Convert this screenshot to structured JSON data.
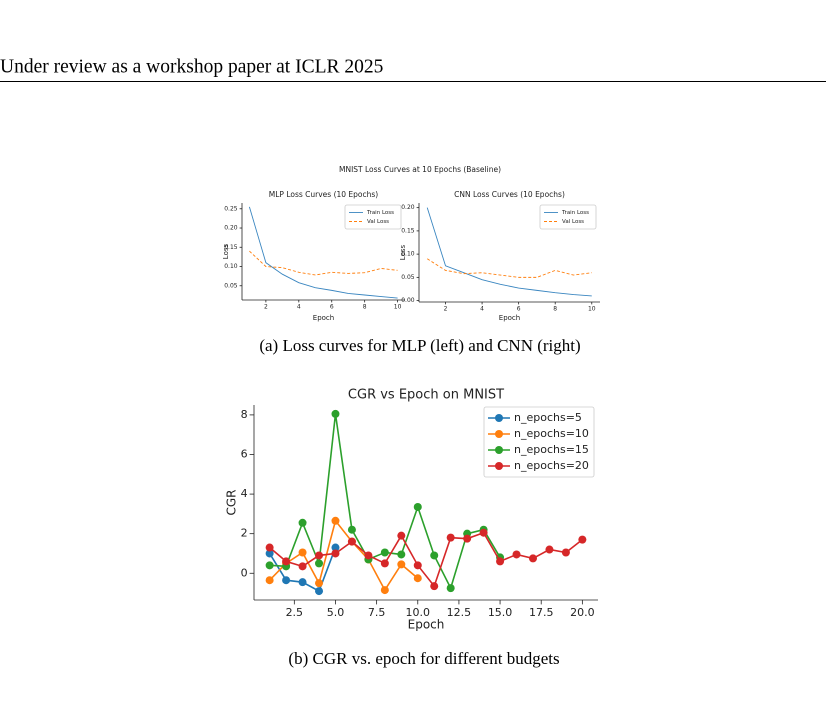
{
  "header": {
    "title": "Under review as a workshop paper at ICLR 2025"
  },
  "figure_title": "MNIST Loss Curves at 10 Epochs (Baseline)",
  "captions": [
    "(a) Loss curves for MLP (left) and CNN (right)",
    "(b) CGR vs. epoch for different budgets"
  ],
  "chart_data": [
    {
      "type": "line",
      "title": "MLP Loss Curves (10 Epochs)",
      "x_label": "Epoch",
      "y_label": "Loss",
      "x": [
        1,
        2,
        3,
        4,
        5,
        6,
        7,
        8,
        9,
        10
      ],
      "xlim": [
        0.55,
        10.45
      ],
      "xticks": [
        2,
        4,
        6,
        8,
        10
      ],
      "ylim": [
        0.013,
        0.265
      ],
      "yticks": [
        0.05,
        {
          "value": 0.1,
          "label": "0.10"
        },
        0.15,
        {
          "value": 0.2,
          "label": "0.20"
        },
        0.25
      ],
      "legend": "upper right",
      "series": [
        {
          "name": "Train Loss",
          "color": "#3a86c0",
          "linestyle": "solid",
          "values": [
            0.255,
            0.11,
            0.08,
            0.058,
            0.045,
            0.038,
            0.03,
            0.026,
            0.022,
            0.018
          ]
        },
        {
          "name": "Val Loss",
          "color": "#ff7f0e",
          "linestyle": "dashed",
          "values": [
            0.14,
            0.1,
            0.097,
            0.085,
            0.078,
            0.085,
            0.082,
            0.084,
            0.095,
            0.09
          ]
        }
      ]
    },
    {
      "type": "line",
      "title": "CNN Loss Curves (10 Epochs)",
      "x_label": "Epoch",
      "y_label": "Loss",
      "x": [
        1,
        2,
        3,
        4,
        5,
        6,
        7,
        8,
        9,
        10
      ],
      "xlim": [
        0.55,
        10.45
      ],
      "xticks": [
        2,
        4,
        6,
        8,
        10
      ],
      "ylim": [
        -0.003,
        0.21
      ],
      "yticks": [
        {
          "value": 0,
          "label": "0.00"
        },
        0.05,
        {
          "value": 0.1,
          "label": "0.10"
        },
        0.15,
        {
          "value": 0.2,
          "label": "0.20"
        }
      ],
      "legend": "upper right",
      "series": [
        {
          "name": "Train Loss",
          "color": "#3a86c0",
          "linestyle": "solid",
          "values": [
            0.2,
            0.075,
            0.06,
            0.045,
            0.035,
            0.027,
            0.022,
            0.017,
            0.013,
            0.01
          ]
        },
        {
          "name": "Val Loss",
          "color": "#ff7f0e",
          "linestyle": "dashed",
          "values": [
            0.09,
            0.065,
            0.058,
            0.06,
            0.055,
            0.05,
            0.05,
            0.065,
            0.055,
            0.06
          ]
        }
      ]
    },
    {
      "type": "line",
      "title": "CGR vs Epoch on MNIST",
      "x_label": "Epoch",
      "y_label": "CGR",
      "xlim": [
        0.05,
        20.95
      ],
      "xticks": [
        2.5,
        {
          "value": 5,
          "label": "5.0"
        },
        7.5,
        {
          "value": 10,
          "label": "10.0"
        },
        12.5,
        {
          "value": 15,
          "label": "15.0"
        },
        17.5,
        {
          "value": 20,
          "label": "20.0"
        }
      ],
      "ylim": [
        -1.35,
        8.5
      ],
      "yticks": [
        0,
        2,
        4,
        6,
        8
      ],
      "legend": "upper right",
      "marker": "circle",
      "series": [
        {
          "name": "n_epochs=5",
          "color": "#1f77b4",
          "linestyle": "solid",
          "x": [
            1,
            2,
            3,
            4,
            5
          ],
          "values": [
            1.0,
            -0.35,
            -0.45,
            -0.9,
            1.3
          ]
        },
        {
          "name": "n_epochs=10",
          "color": "#ff7f0e",
          "linestyle": "solid",
          "x": [
            1,
            2,
            3,
            4,
            5,
            6,
            7,
            8,
            9,
            10
          ],
          "values": [
            -0.35,
            0.5,
            1.05,
            -0.5,
            2.65,
            1.6,
            0.7,
            -0.85,
            0.45,
            -0.25
          ]
        },
        {
          "name": "n_epochs=15",
          "color": "#2ca02c",
          "linestyle": "solid",
          "x": [
            1,
            2,
            3,
            4,
            5,
            6,
            7,
            8,
            9,
            10,
            11,
            12,
            13,
            14,
            15
          ],
          "values": [
            0.4,
            0.35,
            2.55,
            0.5,
            8.05,
            2.2,
            0.7,
            1.05,
            0.95,
            3.35,
            0.9,
            -0.75,
            2.0,
            2.2,
            0.8
          ]
        },
        {
          "name": "n_epochs=20",
          "color": "#d62728",
          "linestyle": "solid",
          "x": [
            1,
            2,
            3,
            4,
            5,
            6,
            7,
            8,
            9,
            10,
            11,
            12,
            13,
            14,
            15,
            16,
            17,
            18,
            19,
            20
          ],
          "values": [
            1.3,
            0.6,
            0.35,
            0.9,
            1.0,
            1.6,
            0.9,
            0.5,
            1.9,
            0.4,
            -0.65,
            1.8,
            1.75,
            2.05,
            0.6,
            0.95,
            0.75,
            1.2,
            1.05,
            1.7
          ]
        }
      ]
    }
  ]
}
